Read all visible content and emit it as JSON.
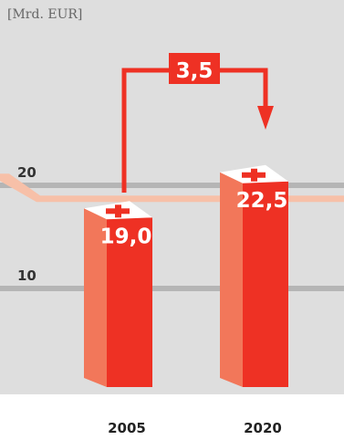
{
  "chart_data": {
    "type": "bar",
    "categories": [
      "2005",
      "2020"
    ],
    "values": [
      19.0,
      22.5
    ],
    "value_labels": [
      "19,0",
      "22,5"
    ],
    "unit_label": "[Mrd. EUR]",
    "yticks": [
      {
        "value": 10,
        "label": "10"
      },
      {
        "value": 20,
        "label": "20"
      }
    ],
    "ylim": [
      0,
      30
    ],
    "reference_value": 19.0,
    "difference_label": "3,5",
    "grid": true,
    "colors": {
      "panel": "#dedede",
      "grid": "#b5b5b5",
      "bar_front": "#ee3124",
      "bar_side": "#f2775a",
      "reference_line": "#f7c0a8",
      "cross_top": "#ffffff",
      "cross_mark": "#ee3124",
      "arrow": "#ee3124",
      "text_value": "#ffffff"
    }
  }
}
